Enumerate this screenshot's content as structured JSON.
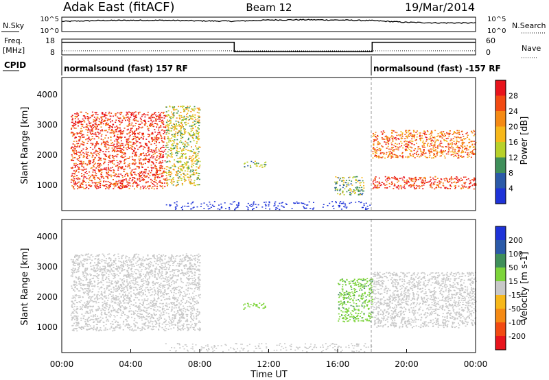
{
  "header": {
    "title": "Adak East (fitACF)",
    "beam": "Beam 12",
    "date": "19/Mar/2014"
  },
  "panels": {
    "nsky": {
      "label": "N.Sky",
      "ticks_left": [
        "10^5",
        "10^0"
      ],
      "ticks_right": [
        "10^5",
        "10^0"
      ],
      "right_label": "N.Search"
    },
    "freq": {
      "label_line1": "Freq.",
      "label_line2": "[MHz]",
      "ticks_left": [
        "18",
        "8"
      ],
      "ticks_right": [
        "60",
        "0"
      ],
      "right_label": "Nave"
    },
    "cpid": {
      "label": "CPID",
      "segments": [
        {
          "text": "normalsound (fast) 157 RF",
          "start_h": 0
        },
        {
          "text": "normalsound (fast) -157 RF",
          "start_h": 18
        }
      ]
    }
  },
  "axes": {
    "y_label": "Slant Range [km]",
    "y_ticks": [
      "1000",
      "2000",
      "3000",
      "4000"
    ],
    "x_ticks": [
      "00:00",
      "04:00",
      "08:00",
      "12:00",
      "16:00",
      "20:00",
      "00:00"
    ],
    "x_label": "Time UT"
  },
  "colorbars": {
    "power": {
      "label": "Power [dB]",
      "ticks": [
        "28",
        "24",
        "20",
        "16",
        "12",
        "8",
        "4"
      ],
      "colors": [
        "#e8141c",
        "#f24a12",
        "#f58a14",
        "#f7b81a",
        "#b8d12a",
        "#3f8f5a",
        "#2b5aa8",
        "#1e33d8"
      ]
    },
    "velocity": {
      "label": "Velocity [m s-1]",
      "ticks": [
        "200",
        "100",
        "50",
        "15",
        "-15",
        "-50",
        "-100",
        "-200"
      ],
      "colors": [
        "#1e33d8",
        "#2b5aa8",
        "#3f8f5a",
        "#7dd43a",
        "#c8c8c8",
        "#f7b81a",
        "#f58a14",
        "#f24a12",
        "#e8141c"
      ]
    }
  },
  "chart_data": [
    {
      "type": "line",
      "name_label": "N.Sky",
      "xlim": [
        0,
        24
      ],
      "note": "noise level, log scale 10^0 to 10^5",
      "x": [
        0,
        2,
        4,
        6,
        8,
        10,
        12,
        14,
        16,
        18,
        20,
        22,
        24
      ],
      "values": [
        3.5,
        3.8,
        3.9,
        3.9,
        3.7,
        3.6,
        4.0,
        4.1,
        4.0,
        3.8,
        3.2,
        3.0,
        3.0
      ]
    },
    {
      "type": "line",
      "name_label": "Freq.",
      "xlim": [
        0,
        24
      ],
      "ylim": [
        8,
        18
      ],
      "x": [
        0,
        10,
        10,
        18,
        18,
        24
      ],
      "values": [
        16,
        16,
        10,
        10,
        16,
        16
      ]
    },
    {
      "type": "heatmap",
      "ylabel": "Slant Range [km]",
      "xlabel": "Time UT",
      "xlim": [
        0,
        24
      ],
      "ylim": [
        180,
        4500
      ],
      "colorbar": "Power [dB]",
      "regions": [
        {
          "x": [
            0.5,
            6
          ],
          "y": [
            900,
            3400
          ],
          "power_db": 28
        },
        {
          "x": [
            6,
            8
          ],
          "y": [
            1000,
            3600
          ],
          "power_db": 16
        },
        {
          "x": [
            10.5,
            11.8
          ],
          "y": [
            1600,
            1800
          ],
          "power_db": 12
        },
        {
          "x": [
            15.8,
            17.5
          ],
          "y": [
            700,
            1300
          ],
          "power_db": 12
        },
        {
          "x": [
            18,
            24
          ],
          "y": [
            900,
            1300
          ],
          "power_db": 28
        },
        {
          "x": [
            18,
            24
          ],
          "y": [
            1900,
            2800
          ],
          "power_db": 24
        }
      ]
    },
    {
      "type": "heatmap",
      "ylabel": "Slant Range [km]",
      "xlabel": "Time UT",
      "xlim": [
        0,
        24
      ],
      "ylim": [
        180,
        4500
      ],
      "colorbar": "Velocity [m s-1]",
      "regions": [
        {
          "x": [
            0.5,
            8
          ],
          "y": [
            900,
            3400
          ],
          "velocity": 0
        },
        {
          "x": [
            10.5,
            11.8
          ],
          "y": [
            1600,
            1800
          ],
          "velocity": 30
        },
        {
          "x": [
            16,
            18
          ],
          "y": [
            1200,
            2600
          ],
          "velocity": 40
        },
        {
          "x": [
            18,
            24
          ],
          "y": [
            1000,
            2800
          ],
          "velocity": 0
        }
      ]
    }
  ]
}
